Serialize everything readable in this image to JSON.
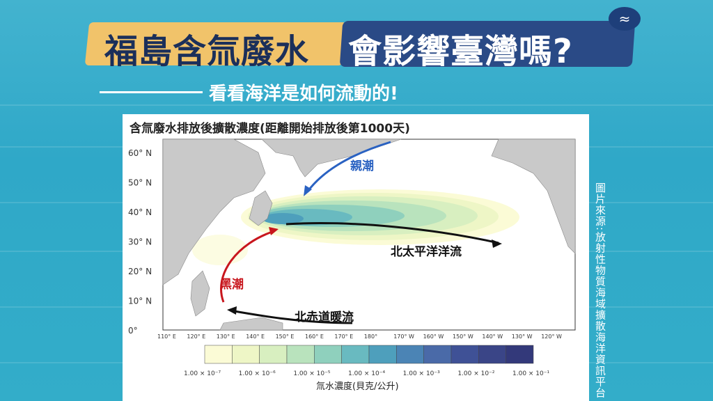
{
  "title": {
    "highlight": "福島含氚廢水",
    "rest": "會影響臺灣嗎?"
  },
  "subtitle": "看看海洋是如何流動的!",
  "logo_icon": "wave-logo-icon",
  "chart": {
    "title": "含氚廢水排放後擴散濃度(距離開始排放後第1000天)",
    "lat_labels": [
      "60° N",
      "50° N",
      "40° N",
      "30° N",
      "20° N",
      "10° N",
      "0°"
    ],
    "lon_labels": [
      "110° E",
      "120° E",
      "130° E",
      "140° E",
      "150° E",
      "160° E",
      "170° E",
      "180°",
      "170° W",
      "160° W",
      "150° W",
      "140° W",
      "130° W",
      "120° W"
    ],
    "currents": {
      "oyashio": "親潮",
      "kuroshio": "黑潮",
      "north_pacific": "北太平洋洋流",
      "north_equatorial": "北赤道暖流"
    },
    "colorbar": {
      "tick_labels": [
        "1.00 × 10⁻⁷",
        "1.00 × 10⁻⁶",
        "1.00 × 10⁻⁵",
        "1.00 × 10⁻⁴",
        "1.00 × 10⁻³",
        "1.00 × 10⁻²",
        "1.00 × 10⁻¹"
      ],
      "colors": [
        "#fbfbd6",
        "#eef6c6",
        "#d8efc0",
        "#b9e3bd",
        "#8fd0bd",
        "#69bac0",
        "#4e9fbc",
        "#4b84b5",
        "#4a6aa8",
        "#3f5196",
        "#3a4587",
        "#33397a"
      ],
      "label": "氚水濃度(貝克/公升)"
    }
  },
  "source_text": "圖片來源:放射性物質海域擴散海洋資訊平台"
}
